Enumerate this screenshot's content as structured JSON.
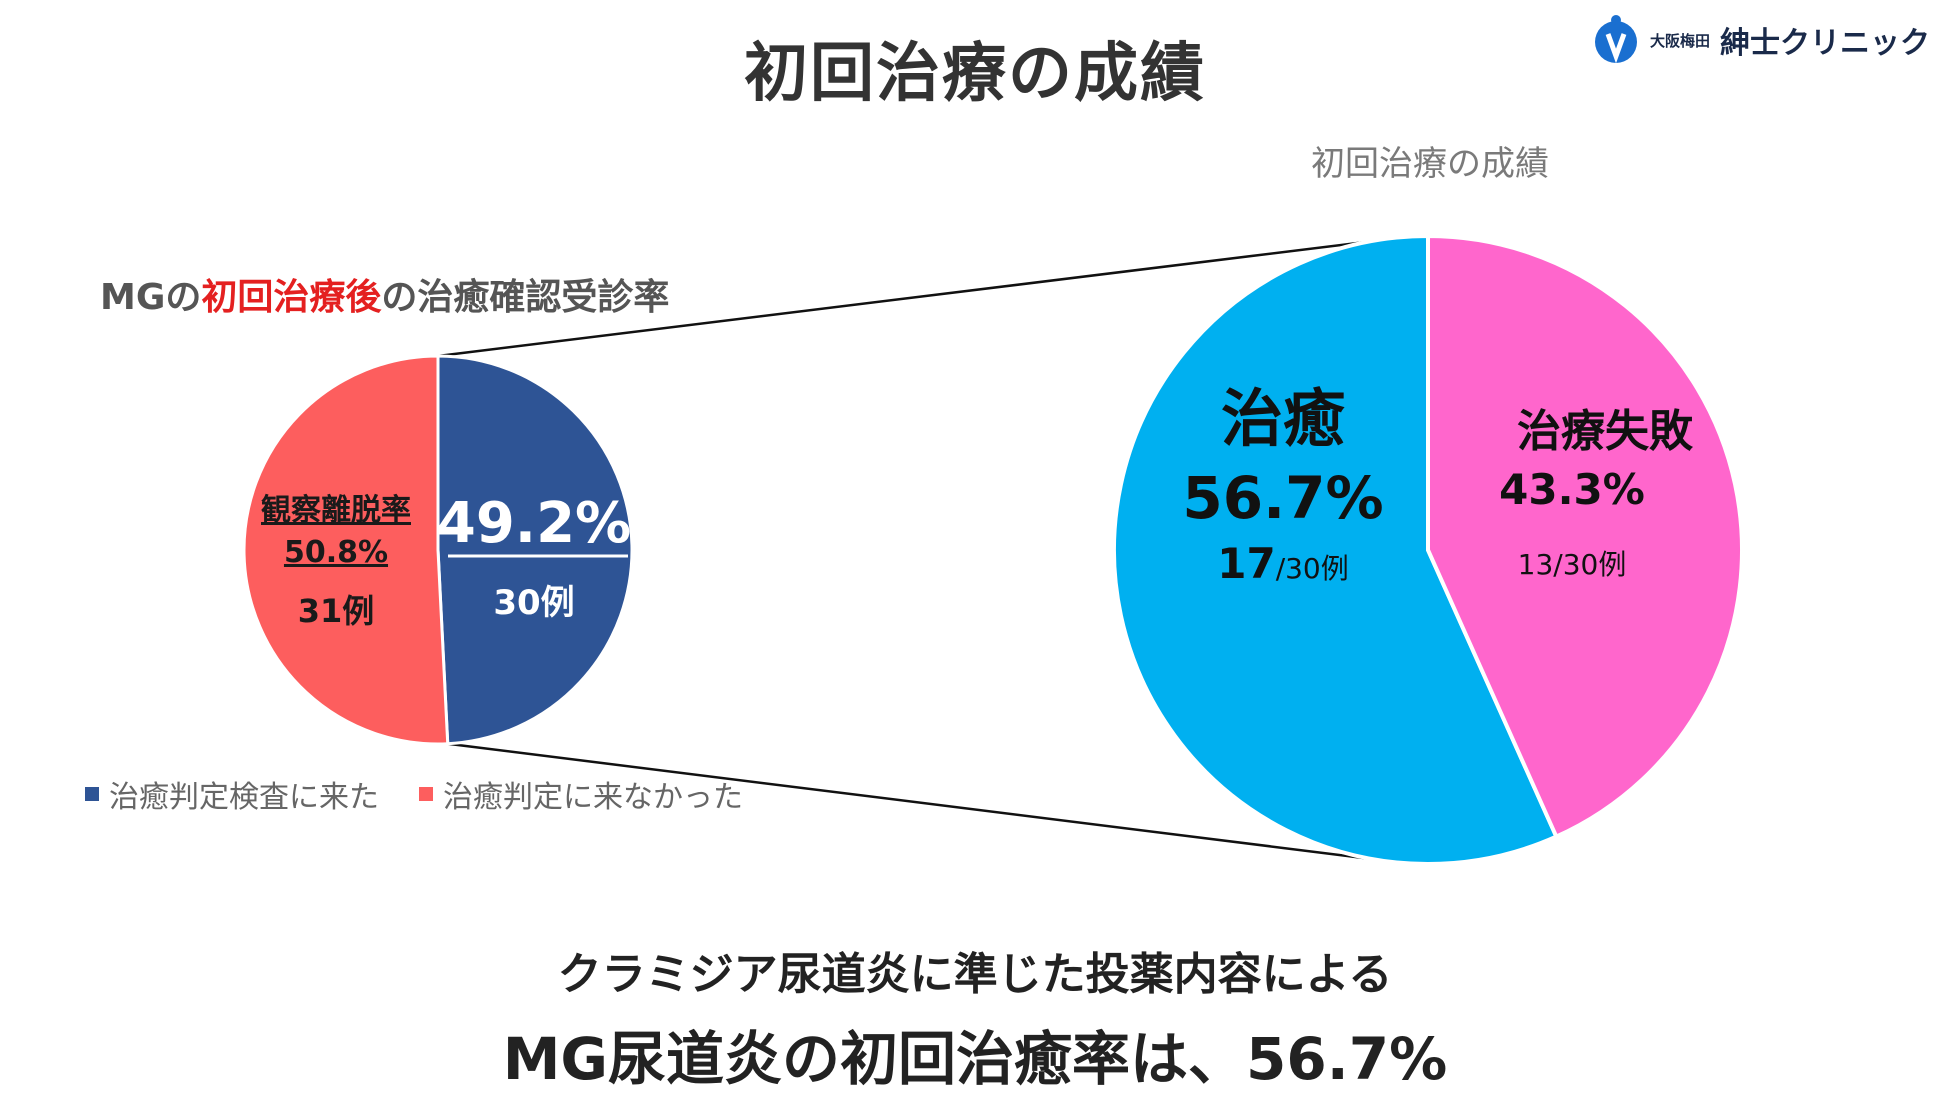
{
  "page": {
    "title": "初回治療の成績",
    "footer_line1": "クラミジア尿道炎に準じた投薬内容による",
    "footer_line2": "MG尿道炎の初回治癒率は、56.7%"
  },
  "logo": {
    "small_text": "大阪梅田",
    "name": "紳士クリニック",
    "accent_color": "#1a6fd0"
  },
  "left_heading": {
    "part1": "MGの",
    "part2": "初回治療後",
    "part3": "の治癒確認受診率",
    "highlight_color": "#e42020"
  },
  "right_chart_title": "初回治療の成績",
  "chart_data": [
    {
      "type": "pie",
      "title": "MGの初回治療後の治癒確認受診率",
      "legend_position": "bottom",
      "slices": [
        {
          "name": "治癒判定検査に来た",
          "value": 49.2,
          "color": "#2e5495",
          "label_pct": "49.2%",
          "label_count": "30例"
        },
        {
          "name": "治癒判定に来なかった",
          "value": 50.8,
          "color": "#fd5e5e",
          "label_title": "観察離脱率",
          "label_pct": "50.8%",
          "label_count": "31例"
        }
      ],
      "legend": [
        "治癒判定検査に来た",
        "治癒判定に来なかった"
      ]
    },
    {
      "type": "pie",
      "title": "初回治療の成績",
      "slices": [
        {
          "name": "治癒",
          "value": 56.7,
          "color": "#00b0f0",
          "label_title": "治癒",
          "label_pct": "56.7%",
          "label_count_main": "17",
          "label_count_sub": "/30例"
        },
        {
          "name": "治療失敗",
          "value": 43.3,
          "color": "#ff66cc",
          "label_title": "治療失敗",
          "label_pct": "43.3%",
          "label_count": "13/30例"
        }
      ]
    }
  ]
}
